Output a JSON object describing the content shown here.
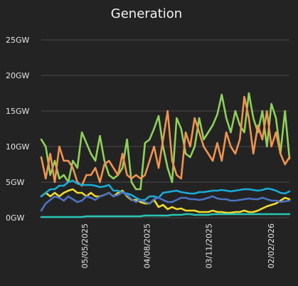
{
  "chart_data": {
    "type": "line",
    "title": "Generation",
    "xlabel": "",
    "ylabel": "",
    "unit": "GW",
    "ylim": [
      0,
      25
    ],
    "yticks": [
      0,
      5,
      10,
      15,
      20,
      25
    ],
    "ytick_labels": [
      "0GW",
      "5GW",
      "10GW",
      "15GW",
      "20GW",
      "25GW"
    ],
    "grid": true,
    "legend": "none",
    "x_index_range": [
      0,
      80
    ],
    "xticks": [
      {
        "index": 14,
        "label": "05/05/2025"
      },
      {
        "index": 34,
        "label": "04/08/2025"
      },
      {
        "index": 54,
        "label": "03/11/2025"
      },
      {
        "index": 74,
        "label": "02/02/2026"
      }
    ],
    "series": [
      {
        "color": "#8fd15a",
        "values": [
          11,
          10,
          6,
          8,
          5.5,
          6,
          5,
          8,
          7,
          12,
          10.5,
          9,
          8,
          11.5,
          8,
          6,
          5.5,
          6,
          7,
          11,
          5,
          4,
          4,
          10.5,
          11,
          12.5,
          14.3,
          10,
          7,
          5,
          14,
          12.5,
          9,
          8.5,
          10,
          14,
          11,
          12,
          13,
          14.5,
          17.3,
          14,
          12,
          15,
          13,
          12,
          17.5,
          14,
          12,
          15,
          10,
          16,
          14,
          9,
          15,
          8.3
        ]
      },
      {
        "color": "#f0934f",
        "values": [
          8.5,
          5.5,
          9,
          5,
          10,
          8,
          8,
          7,
          5,
          4.5,
          6,
          6,
          7,
          5,
          7.5,
          8,
          7,
          6,
          9,
          6,
          5.5,
          6,
          5.5,
          6,
          8,
          10,
          7,
          11,
          15,
          8,
          6,
          5.5,
          12,
          10,
          14,
          12,
          10,
          9,
          8,
          10.5,
          8,
          12,
          10,
          9,
          11,
          17,
          14,
          9,
          13,
          11,
          15,
          10,
          12,
          9,
          7.5,
          8.5
        ]
      },
      {
        "color": "#f1db2c",
        "values": [
          3,
          3.5,
          3,
          3.5,
          3,
          3.5,
          3.8,
          4,
          3.5,
          3.5,
          3,
          3.5,
          3,
          3,
          3.2,
          3.5,
          3,
          3.5,
          3.8,
          3,
          2.5,
          2.5,
          2.2,
          2,
          2,
          2.5,
          1.5,
          1.8,
          1.2,
          1.5,
          1.2,
          1.3,
          1,
          1,
          1,
          0.8,
          0.8,
          0.8,
          1,
          0.8,
          0.8,
          0.7,
          0.7,
          0.8,
          0.8,
          1,
          0.8,
          0.8,
          1,
          1.3,
          1.6,
          1.8,
          2,
          2.4,
          2.8,
          2.6
        ]
      },
      {
        "color": "#1aabd8",
        "values": [
          3,
          3.5,
          4,
          4,
          4.5,
          4.5,
          5,
          5.2,
          4.8,
          4.6,
          4.6,
          4.6,
          4.5,
          4.3,
          4.4,
          4.6,
          3.8,
          3.8,
          3.5,
          3.4,
          3.2,
          2.8,
          2.5,
          2.5,
          3,
          3,
          2.8,
          3.5,
          3.6,
          3.7,
          3.8,
          3.6,
          3.5,
          3.4,
          3.4,
          3.6,
          3.6,
          3.7,
          3.8,
          3.8,
          3.9,
          3.8,
          3.7,
          3.8,
          3.9,
          4,
          4,
          3.9,
          3.8,
          3.9,
          4.1,
          4,
          3.8,
          3.5,
          3.4,
          3.7
        ]
      },
      {
        "color": "#4c73c2",
        "values": [
          1,
          2,
          2.5,
          3,
          2.8,
          2.4,
          3,
          2.6,
          2.2,
          2.4,
          3,
          2.8,
          2.5,
          3,
          3.2,
          3.5,
          3,
          3.2,
          3.6,
          3.2,
          2.6,
          2.2,
          2.5,
          2.2,
          2,
          2.6,
          2.8,
          2.5,
          2.2,
          2.2,
          2.5,
          2.8,
          2.8,
          2.6,
          2.6,
          2.5,
          2.6,
          2.8,
          3,
          2.7,
          2.6,
          2.6,
          2.4,
          2.4,
          2.5,
          2.6,
          2.7,
          2.6,
          2.6,
          2.8,
          2.6,
          2.4,
          2.4,
          2.2,
          2.3,
          2.4
        ]
      },
      {
        "color": "#26c5b5",
        "values": [
          0.1,
          0.1,
          0.1,
          0.1,
          0.1,
          0.1,
          0.1,
          0.1,
          0.1,
          0.1,
          0.2,
          0.2,
          0.2,
          0.2,
          0.2,
          0.2,
          0.2,
          0.2,
          0.2,
          0.2,
          0.2,
          0.2,
          0.2,
          0.3,
          0.3,
          0.3,
          0.3,
          0.3,
          0.3,
          0.4,
          0.4,
          0.4,
          0.5,
          0.5,
          0.4,
          0.4,
          0.4,
          0.4,
          0.5,
          0.5,
          0.5,
          0.5,
          0.5,
          0.5,
          0.5,
          0.5,
          0.5,
          0.5,
          0.5,
          0.5,
          0.5,
          0.5,
          0.5,
          0.5,
          0.5,
          0.5
        ]
      }
    ]
  }
}
